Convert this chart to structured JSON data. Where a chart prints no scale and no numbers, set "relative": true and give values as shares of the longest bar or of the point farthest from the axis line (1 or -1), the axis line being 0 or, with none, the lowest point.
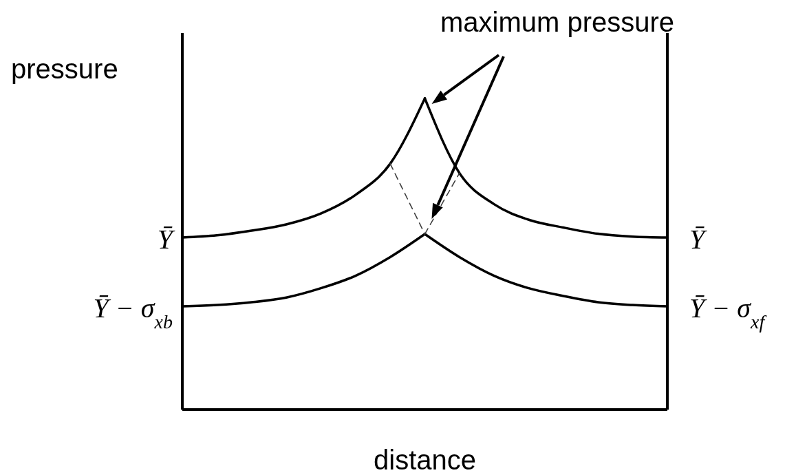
{
  "chart_data": {
    "type": "line",
    "relative": true,
    "xlabel": "distance",
    "ylabel": "pressure",
    "annotations": [
      "maximum pressure"
    ],
    "marker": "none",
    "categories": [
      null,
      null,
      null,
      null,
      null,
      null,
      null,
      null,
      null,
      null,
      null,
      null,
      null,
      null,
      null
    ],
    "series": [
      {
        "name": "Ȳ",
        "color": "#000000",
        "values": [
          0.553,
          0.56,
          0.575,
          0.595,
          0.63,
          0.69,
          0.79,
          1,
          null,
          null,
          null,
          null,
          null,
          null,
          null
        ]
      },
      {
        "name": "Ȳ − σ$_{xb}$",
        "color": "#000000",
        "values": [
          0.332,
          0.336,
          0.345,
          0.36,
          0.39,
          0.43,
          0.49,
          0.564,
          null,
          null,
          null,
          null,
          null,
          null,
          null
        ]
      },
      {
        "name": "Ȳ",
        "color": "#000000",
        "values": [
          null,
          null,
          null,
          null,
          null,
          null,
          null,
          1,
          0.76,
          0.66,
          0.61,
          0.585,
          0.565,
          0.556,
          0.553
        ]
      },
      {
        "name": "Ȳ − σ$_{xf}$",
        "color": "#000000",
        "values": [
          null,
          null,
          null,
          null,
          null,
          null,
          null,
          0.564,
          0.49,
          0.43,
          0.39,
          0.365,
          0.345,
          0.336,
          0.332
        ]
      },
      {
        "color": "#404040",
        "line_style": "dashed",
        "values": [
          null,
          null,
          null,
          null,
          null,
          null,
          0.79,
          0.564,
          null,
          null,
          null,
          null,
          null,
          null,
          null
        ]
      },
      {
        "color": "#404040",
        "line_style": "dashed",
        "values": [
          null,
          null,
          null,
          null,
          null,
          null,
          null,
          0.564,
          0.76,
          null,
          null,
          null,
          null,
          null,
          null
        ]
      }
    ]
  }
}
